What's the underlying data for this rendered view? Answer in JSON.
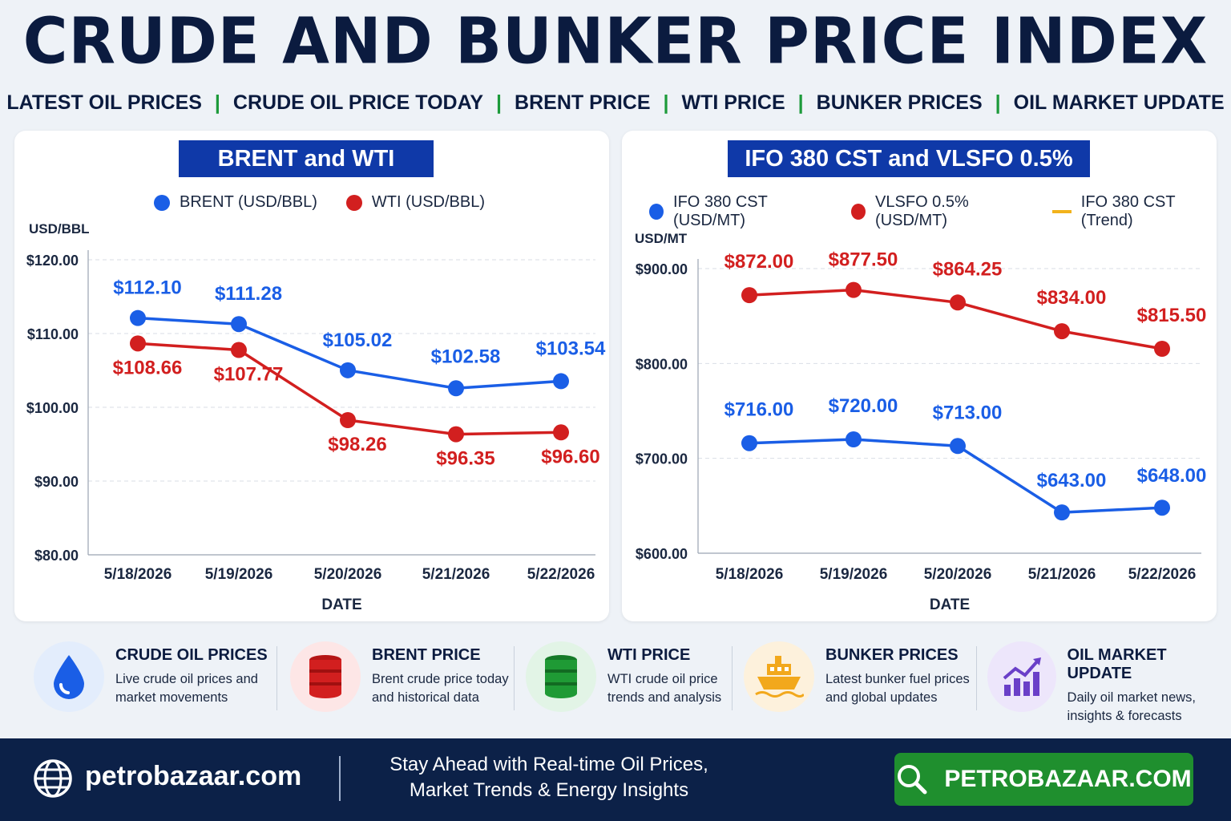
{
  "header": {
    "title": "CRUDE AND BUNKER PRICE INDEX",
    "nav": [
      "LATEST OIL PRICES",
      "CRUDE OIL PRICE TODAY",
      "BRENT PRICE",
      "WTI PRICE",
      "BUNKER PRICES",
      "OIL MARKET UPDATE"
    ],
    "nav_separator": "|"
  },
  "chart_data": [
    {
      "type": "line",
      "title": "BRENT and WTI",
      "ylabel": "USD/BBL",
      "xlabel": "DATE",
      "ylim": [
        80,
        120
      ],
      "yticks": [
        120,
        110,
        100,
        90,
        80
      ],
      "ytick_labels": [
        "$120.00",
        "$110.00",
        "$100.00",
        "$90.00",
        "$80.00"
      ],
      "categories": [
        "5/18/2026",
        "5/19/2026",
        "5/20/2026",
        "5/21/2026",
        "5/22/2026"
      ],
      "grid": true,
      "legend_position": "top",
      "series": [
        {
          "name": "BRENT (USD/BBL)",
          "color": "#1a5ee6",
          "values": [
            112.1,
            111.28,
            105.02,
            102.58,
            103.54
          ],
          "labels": [
            "$112.10",
            "$111.28",
            "$105.02",
            "$102.58",
            "$103.54"
          ]
        },
        {
          "name": "WTI (USD/BBL)",
          "color": "#d21f1f",
          "values": [
            108.66,
            107.77,
            98.26,
            96.35,
            96.6
          ],
          "labels": [
            "$108.66",
            "$107.77",
            "$98.26",
            "$96.35",
            "$96.60"
          ]
        }
      ]
    },
    {
      "type": "line",
      "title": "IFO 380 CST and VLSFO 0.5%",
      "ylabel": "USD/MT",
      "xlabel": "DATE",
      "ylim": [
        600,
        900
      ],
      "yticks": [
        900,
        800,
        700,
        600
      ],
      "ytick_labels": [
        "$900.00",
        "$800.00",
        "$700.00",
        "$600.00"
      ],
      "categories": [
        "5/18/2026",
        "5/19/2026",
        "5/20/2026",
        "5/21/2026",
        "5/22/2026"
      ],
      "grid": true,
      "legend_position": "top",
      "series": [
        {
          "name": "IFO 380 CST (USD/MT)",
          "color": "#1a5ee6",
          "values": [
            716.0,
            720.0,
            713.0,
            643.0,
            648.0
          ],
          "labels": [
            "$716.00",
            "$720.00",
            "$713.00",
            "$643.00",
            "$648.00"
          ]
        },
        {
          "name": "VLSFO 0.5% (USD/MT)",
          "color": "#d21f1f",
          "values": [
            872.0,
            877.5,
            864.25,
            834.0,
            815.5
          ],
          "labels": [
            "$872.00",
            "$877.50",
            "$864.25",
            "$834.00",
            "$815.50"
          ]
        },
        {
          "name": "IFO 380 CST (Trend)",
          "color": "#f2b31c",
          "values": [
            716.0,
            720.0,
            713.0,
            643.0,
            648.0
          ]
        }
      ]
    }
  ],
  "features": [
    {
      "title": "CRUDE OIL PRICES",
      "desc": "Live crude oil prices and\nmarket movements",
      "icon": "droplet-icon",
      "color": "#1a5ee6"
    },
    {
      "title": "BRENT PRICE",
      "desc": "Brent crude price today\nand historical data",
      "icon": "red-barrel-icon",
      "color": "#d21f1f"
    },
    {
      "title": "WTI PRICE",
      "desc": "WTI crude oil price\ntrends and analysis",
      "icon": "green-barrel-icon",
      "color": "#1f9a35"
    },
    {
      "title": "BUNKER PRICES",
      "desc": "Latest bunker fuel prices\nand global updates",
      "icon": "ship-icon",
      "color": "#f2a81c"
    },
    {
      "title": "OIL MARKET UPDATE",
      "desc": "Daily oil market news,\ninsights & forecasts",
      "icon": "growth-chart-icon",
      "color": "#6a3fc8"
    }
  ],
  "footer": {
    "site": "petrobazaar.com",
    "tagline": "Stay Ahead with Real-time Oil Prices,\nMarket Trends & Energy Insights",
    "cta": "PETROBAZAAR.COM"
  }
}
